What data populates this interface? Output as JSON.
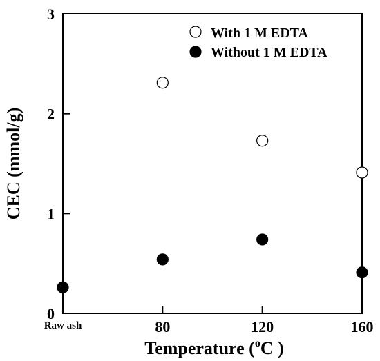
{
  "chart_data": {
    "type": "scatter",
    "title": "",
    "xlabel": "Temperature (",
    "xlabel_sup": "o",
    "xlabel_tail": "C )",
    "ylabel": "CEC (mmol/g)",
    "x_ticks": [
      {
        "value": 40,
        "label": "Raw ash"
      },
      {
        "value": 80,
        "label": "80"
      },
      {
        "value": 120,
        "label": "120"
      },
      {
        "value": 160,
        "label": "160"
      }
    ],
    "y_ticks": [
      {
        "value": 0,
        "label": "0"
      },
      {
        "value": 1,
        "label": "1"
      },
      {
        "value": 2,
        "label": "2"
      },
      {
        "value": 3,
        "label": "3"
      }
    ],
    "xlim": [
      40,
      160
    ],
    "ylim": [
      0,
      3
    ],
    "grid": false,
    "legend_position": "top-right",
    "series": [
      {
        "name": "With 1 M EDTA",
        "marker": "open-circle",
        "color": "#000000",
        "points": [
          {
            "x": 80,
            "y": 2.31
          },
          {
            "x": 120,
            "y": 1.73
          },
          {
            "x": 160,
            "y": 1.41
          }
        ]
      },
      {
        "name": "Without 1 M EDTA",
        "marker": "filled-circle",
        "color": "#000000",
        "points": [
          {
            "x": 40,
            "y": 0.26
          },
          {
            "x": 80,
            "y": 0.54
          },
          {
            "x": 120,
            "y": 0.74
          },
          {
            "x": 160,
            "y": 0.41
          }
        ]
      }
    ]
  }
}
